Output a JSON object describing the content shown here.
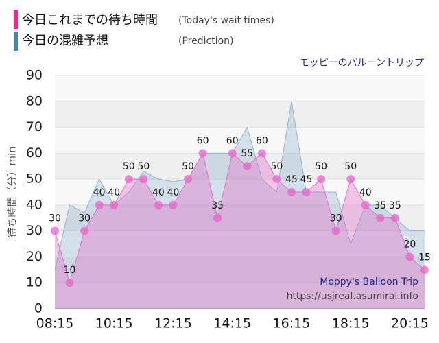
{
  "chart_data": {
    "type": "line",
    "legend": [
      {
        "label": "今日これまでの待ち時間",
        "note": "(Today's wait times)",
        "color": "#ee2a8f"
      },
      {
        "label": "今日の混雑予想",
        "note": "(Prediction)",
        "color": "#4a82b4"
      }
    ],
    "subtitle": "モッピーのバルーントリップ",
    "watermark": [
      "Moppy's Balloon Trip",
      "https://usjreal.asumirai.info"
    ],
    "y_label": "待ち時間（分）min",
    "categories": [
      "08:15",
      null,
      null,
      null,
      "10:15",
      null,
      null,
      null,
      "12:15",
      null,
      null,
      null,
      "14:15",
      null,
      null,
      null,
      "16:15",
      null,
      null,
      null,
      "18:15",
      null,
      null,
      null,
      "20:15",
      null
    ],
    "series": [
      {
        "name": "今日これまでの待ち時間",
        "color": "#e070c8",
        "values": [
          30,
          10,
          30,
          40,
          40,
          50,
          50,
          40,
          40,
          50,
          60,
          35,
          60,
          55,
          60,
          50,
          45,
          45,
          50,
          30,
          50,
          40,
          35,
          35,
          20,
          15
        ]
      },
      {
        "name": "今日の混雑予想",
        "color": "#8fb3cc",
        "values": [
          15,
          40,
          37,
          50,
          40,
          45,
          53,
          50,
          49,
          50,
          60,
          60,
          60,
          70,
          50,
          45,
          80,
          45,
          45,
          45,
          25,
          40,
          40,
          35,
          30,
          30
        ]
      }
    ],
    "ylim": [
      0,
      90
    ],
    "yticks": [
      0,
      10,
      20,
      30,
      40,
      50,
      60,
      70,
      80,
      90
    ],
    "grid": true
  }
}
